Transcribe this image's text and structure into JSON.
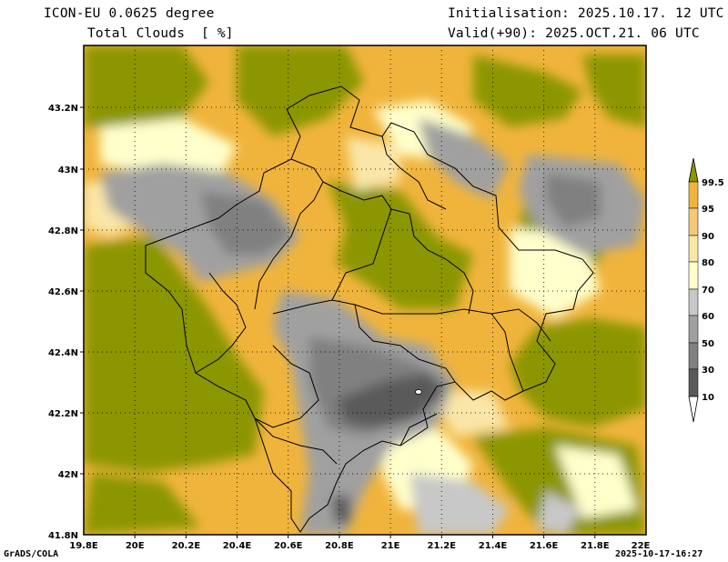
{
  "header": {
    "model": "ICON-EU 0.0625 degree",
    "field": "Total Clouds  [ %]",
    "init": "Initialisation: 2025.10.17. 12 UTC",
    "valid": "Valid(+90): 2025.OCT.21. 06 UTC"
  },
  "footer": {
    "credit": "GrADS/COLA",
    "timestamp": "2025-10-17-16:27"
  },
  "map": {
    "lon_labels": [
      "19.8E",
      "20E",
      "20.2E",
      "20.4E",
      "20.6E",
      "20.8E",
      "21E",
      "21.2E",
      "21.4E",
      "21.6E",
      "21.8E",
      "22E"
    ],
    "lat_labels": [
      "43.2N",
      "43N",
      "42.8N",
      "42.6N",
      "42.4N",
      "42.2N",
      "42N",
      "41.8N"
    ],
    "lon_range": [
      19.8,
      22.0
    ],
    "lat_range": [
      41.8,
      43.4
    ],
    "grid": "dotted"
  },
  "colorbar": {
    "levels": [
      "99.5",
      "95",
      "90",
      "80",
      "70",
      "60",
      "50",
      "30",
      "10"
    ],
    "colors": [
      "#ffffff",
      "#5a5a5a",
      "#808080",
      "#a0a0a0",
      "#c8c8c8",
      "#ffffcc",
      "#fae6a8",
      "#f5c878",
      "#f0b43c",
      "#8c9600"
    ]
  }
}
